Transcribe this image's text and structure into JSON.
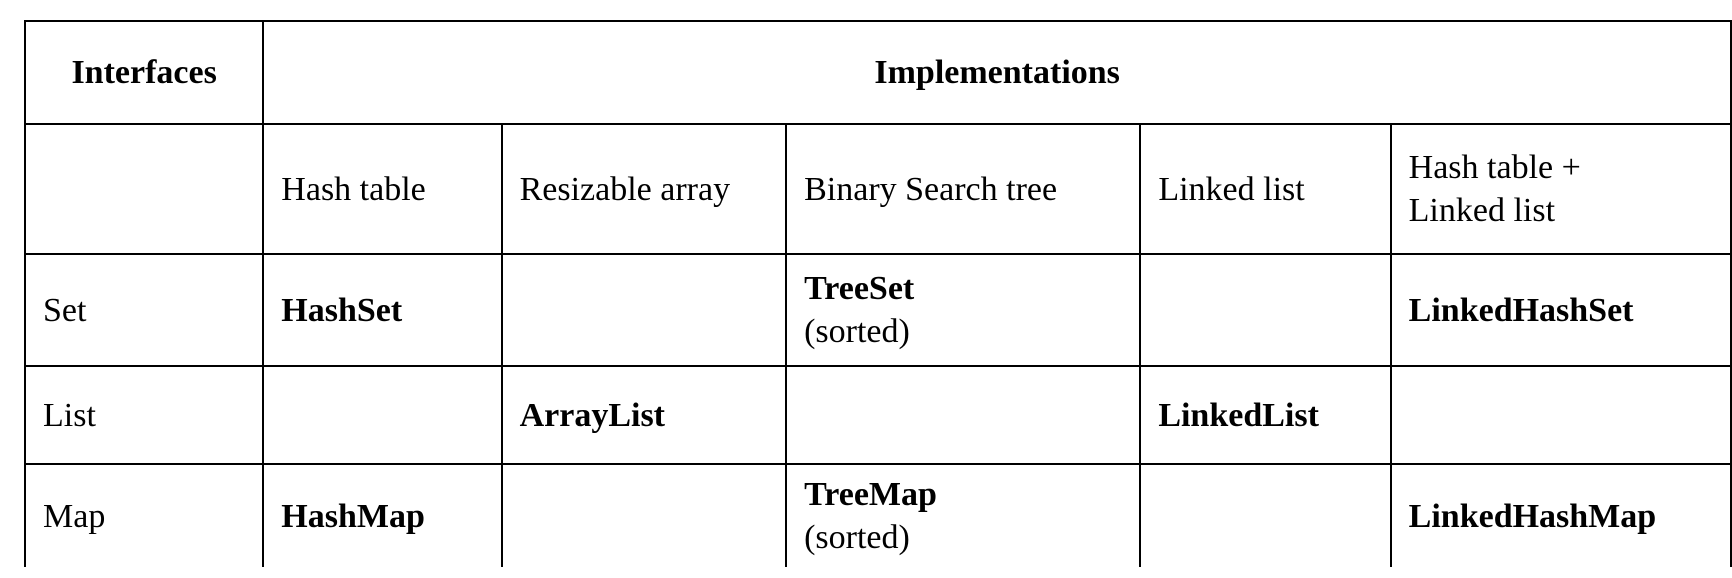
{
  "table": {
    "header": {
      "interfaces": "Interfaces",
      "implementations": "Implementations"
    },
    "categories": {
      "hash_table": "Hash table",
      "resizable_array": "Resizable array",
      "bst": "Binary Search tree",
      "linked_list": "Linked list",
      "hash_linked_line1": "Hash table +",
      "hash_linked_line2": "Linked list"
    },
    "rows": {
      "set": {
        "interface": "Set",
        "hash_table": "HashSet",
        "bst": "TreeSet",
        "bst_note": "(sorted)",
        "hash_linked": "LinkedHashSet"
      },
      "list": {
        "interface": "List",
        "resizable_array": "ArrayList",
        "linked_list": "LinkedList"
      },
      "map": {
        "interface": "Map",
        "hash_table": "HashMap",
        "bst": "TreeMap",
        "bst_note": "(sorted)",
        "hash_linked": "LinkedHashMap"
      }
    }
  }
}
